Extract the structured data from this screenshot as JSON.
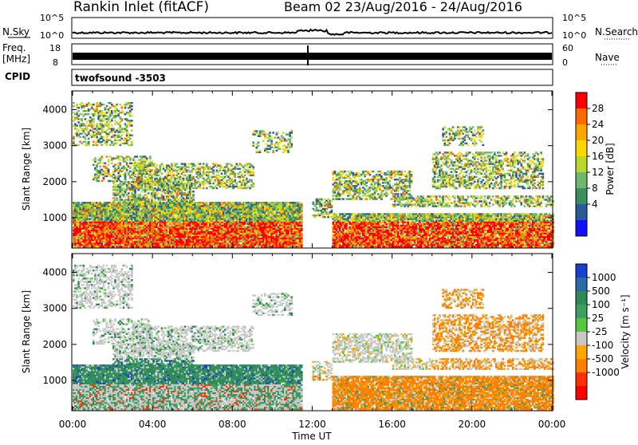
{
  "header": {
    "title": "Rankin Inlet (fitACF)",
    "beam_info": "Beam 02  23/Aug/2016 - 24/Aug/2016"
  },
  "noise_panel": {
    "left_label": "N.Sky",
    "right_label": "N.Search",
    "y_ticks": [
      "10^5",
      "10^0"
    ],
    "right_ticks": [
      "10^5",
      "10^0"
    ]
  },
  "freq_panel": {
    "left_label_line1": "Freq.",
    "left_label_line2": "[MHz]",
    "right_label": "Nave",
    "y_ticks": [
      "18",
      "8"
    ],
    "right_ticks": [
      "60",
      "0"
    ]
  },
  "cpid": {
    "label": "CPID",
    "value": "twofsound -3503"
  },
  "power_colorbar": {
    "label": "Power [dB]",
    "ticks": [
      "28",
      "24",
      "20",
      "16",
      "12",
      "8",
      "4"
    ],
    "colors": [
      "#ff0000",
      "#ff6a00",
      "#ffa500",
      "#ffd700",
      "#b8d82c",
      "#6db86a",
      "#3a8f5f",
      "#2a5a9a",
      "#1010ff"
    ]
  },
  "velocity_colorbar": {
    "label": "Velocity [m s⁻¹]",
    "ticks": [
      "1000",
      "500",
      "100",
      "25",
      "-25",
      "-100",
      "-500",
      "-1000"
    ],
    "colors": [
      "#1a3fcf",
      "#2a6aa5",
      "#2f8a5a",
      "#3ea060",
      "#55c840",
      "#c8c8c8",
      "#ffa500",
      "#ff8000",
      "#ff3000",
      "#ff0000"
    ]
  },
  "chart_data": [
    {
      "type": "heatmap",
      "title": "Power",
      "ylabel": "Slant Range [km]",
      "ylim": [
        180,
        4500
      ],
      "y_ticks": [
        1000,
        2000,
        3000,
        4000
      ],
      "xlim": [
        0,
        24
      ],
      "x_ticks": [
        "00:00",
        "04:00",
        "08:00",
        "12:00",
        "16:00",
        "20:00",
        "00:00"
      ],
      "xlabel": "Time UT",
      "clim": [
        0,
        30
      ]
    },
    {
      "type": "heatmap",
      "title": "Velocity",
      "ylabel": "Slant Range [km]",
      "ylim": [
        180,
        4500
      ],
      "y_ticks": [
        1000,
        2000,
        3000,
        4000
      ],
      "xlim": [
        0,
        24
      ],
      "x_ticks": [
        "00:00",
        "04:00",
        "08:00",
        "12:00",
        "16:00",
        "20:00",
        "00:00"
      ],
      "xlabel": "Time UT",
      "clim": [
        -1000,
        1000
      ]
    }
  ]
}
